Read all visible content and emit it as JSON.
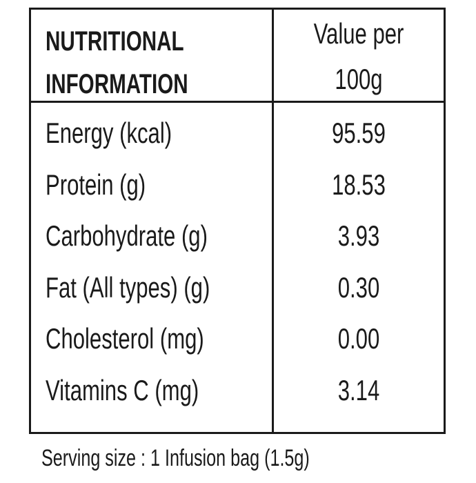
{
  "table": {
    "header": {
      "label_lines": [
        "NUTRITIONAL",
        "INFORMATION"
      ],
      "value_lines": [
        "Value per",
        "100g"
      ]
    },
    "rows": [
      [
        "Energy (kcal)",
        "95.59"
      ],
      [
        "Protein (g)",
        "18.53"
      ],
      [
        "Carbohydrate (g)",
        "3.93"
      ],
      [
        "Fat (All types) (g)",
        "0.30"
      ],
      [
        "Cholesterol (mg)",
        "0.00"
      ],
      [
        "Vitamins C (mg)",
        "3.14"
      ]
    ]
  },
  "footer": {
    "serving": "Serving size : 1 Infusion bag (1.5g)"
  }
}
